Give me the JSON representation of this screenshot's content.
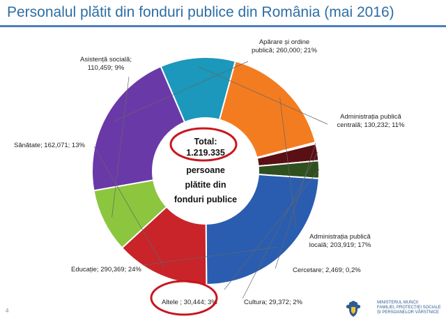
{
  "chart_data": {
    "type": "pie",
    "style": "donut",
    "title": "Personalul plătit din fonduri publice din România (mai 2016)",
    "center_text": [
      "Total:",
      "1.219.335",
      "persoane",
      "plătite din",
      "fonduri publice"
    ],
    "slices": [
      {
        "label": "Apărare și ordine publică",
        "value": 260000,
        "percent": "21%",
        "color": "#6a39a8",
        "text_lines": [
          "Apărare și ordine",
          "publică; 260,000; 21%"
        ]
      },
      {
        "label": "Administrația publică centrală",
        "value": 130232,
        "percent": "11%",
        "color": "#1b98bb",
        "text_lines": [
          "Administrația publică",
          "centrală; 130,232; 11%"
        ]
      },
      {
        "label": "Administrația publică locală",
        "value": 203919,
        "percent": "17%",
        "color": "#f47c20",
        "text_lines": [
          "Administrația publică",
          "locală; 203,919; 17%"
        ]
      },
      {
        "label": "Cercetare",
        "value": 2469,
        "percent": "0,2%",
        "color": "#d8cfa0",
        "text_lines": [
          "Cercetare; 2,469; 0,2%"
        ]
      },
      {
        "label": "Cultura",
        "value": 29372,
        "percent": "2%",
        "color": "#5a0f14",
        "text_lines": [
          "Cultura; 29,372; 2%"
        ]
      },
      {
        "label": "Altele",
        "value": 30444,
        "percent": "3%",
        "color": "#2f4f1e",
        "text_lines": [
          "Altele ; 30,444; 3%"
        ]
      },
      {
        "label": "Educație",
        "value": 290369,
        "percent": "24%",
        "color": "#2a5db0",
        "text_lines": [
          "Educație; 290,369; 24%"
        ]
      },
      {
        "label": "Sănătate",
        "value": 162071,
        "percent": "13%",
        "color": "#c8242a",
        "text_lines": [
          "Sănătate; 162,071; 13%"
        ]
      },
      {
        "label": "Asistență socială",
        "value": 110459,
        "percent": "9%",
        "color": "#8cc63e",
        "text_lines": [
          "Asistență socială;",
          "110,459; 9%"
        ]
      }
    ]
  },
  "slide_number": "4",
  "logo": {
    "lines": [
      "Ministerul Muncii",
      "Familiei, Protecției Sociale",
      "și Persoanelor Vârstnice"
    ],
    "accent": "#2e5a93"
  },
  "highlight_color": "#c8161d"
}
